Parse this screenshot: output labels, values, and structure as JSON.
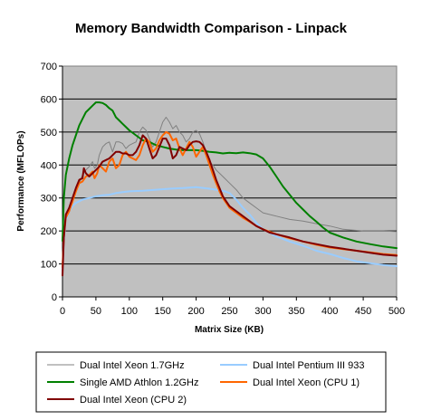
{
  "chart_data": {
    "type": "line",
    "title": "Memory Bandwidth Comparison - Linpack",
    "xlabel": "Matrix Size (KB)",
    "ylabel": "Performance (MFLOPs)",
    "xlim": [
      0,
      500
    ],
    "ylim": [
      0,
      700
    ],
    "xticks": [
      0,
      50,
      100,
      150,
      200,
      250,
      300,
      350,
      400,
      450,
      500
    ],
    "yticks": [
      0,
      100,
      200,
      300,
      400,
      500,
      600,
      700
    ],
    "grid": true,
    "plot_background": "#c0c0c0",
    "legend_position": "bottom",
    "series": [
      {
        "name": "Dual Intel Xeon 1.7GHz",
        "color": "#808080",
        "width": 1,
        "points": [
          [
            0,
            80
          ],
          [
            2,
            180
          ],
          [
            5,
            240
          ],
          [
            10,
            270
          ],
          [
            15,
            300
          ],
          [
            20,
            330
          ],
          [
            25,
            345
          ],
          [
            30,
            370
          ],
          [
            35,
            385
          ],
          [
            40,
            395
          ],
          [
            45,
            410
          ],
          [
            48,
            390
          ],
          [
            52,
            400
          ],
          [
            55,
            430
          ],
          [
            60,
            455
          ],
          [
            65,
            465
          ],
          [
            70,
            470
          ],
          [
            75,
            440
          ],
          [
            80,
            470
          ],
          [
            85,
            470
          ],
          [
            90,
            465
          ],
          [
            95,
            450
          ],
          [
            100,
            460
          ],
          [
            105,
            465
          ],
          [
            110,
            470
          ],
          [
            115,
            500
          ],
          [
            120,
            515
          ],
          [
            125,
            505
          ],
          [
            130,
            480
          ],
          [
            135,
            455
          ],
          [
            140,
            470
          ],
          [
            145,
            500
          ],
          [
            150,
            530
          ],
          [
            155,
            545
          ],
          [
            160,
            530
          ],
          [
            165,
            510
          ],
          [
            170,
            520
          ],
          [
            175,
            500
          ],
          [
            180,
            490
          ],
          [
            185,
            470
          ],
          [
            190,
            480
          ],
          [
            195,
            500
          ],
          [
            200,
            505
          ],
          [
            205,
            495
          ],
          [
            210,
            470
          ],
          [
            215,
            440
          ],
          [
            220,
            410
          ],
          [
            225,
            400
          ],
          [
            230,
            385
          ],
          [
            240,
            365
          ],
          [
            250,
            345
          ],
          [
            260,
            325
          ],
          [
            270,
            300
          ],
          [
            280,
            285
          ],
          [
            290,
            270
          ],
          [
            300,
            255
          ],
          [
            320,
            245
          ],
          [
            340,
            235
          ],
          [
            360,
            230
          ],
          [
            380,
            222
          ],
          [
            400,
            215
          ],
          [
            420,
            205
          ],
          [
            450,
            200
          ],
          [
            480,
            200
          ],
          [
            500,
            198
          ]
        ]
      },
      {
        "name": "Dual Intel Pentium III 933",
        "color": "#99ccff",
        "width": 2,
        "points": [
          [
            0,
            80
          ],
          [
            2,
            170
          ],
          [
            5,
            230
          ],
          [
            10,
            260
          ],
          [
            15,
            275
          ],
          [
            20,
            285
          ],
          [
            30,
            295
          ],
          [
            40,
            300
          ],
          [
            50,
            305
          ],
          [
            60,
            308
          ],
          [
            70,
            310
          ],
          [
            80,
            315
          ],
          [
            90,
            318
          ],
          [
            100,
            320
          ],
          [
            120,
            322
          ],
          [
            140,
            325
          ],
          [
            160,
            328
          ],
          [
            180,
            330
          ],
          [
            200,
            333
          ],
          [
            220,
            328
          ],
          [
            240,
            322
          ],
          [
            250,
            315
          ],
          [
            260,
            295
          ],
          [
            270,
            270
          ],
          [
            280,
            250
          ],
          [
            290,
            225
          ],
          [
            300,
            205
          ],
          [
            320,
            183
          ],
          [
            340,
            168
          ],
          [
            360,
            155
          ],
          [
            380,
            140
          ],
          [
            400,
            130
          ],
          [
            420,
            118
          ],
          [
            440,
            108
          ],
          [
            460,
            102
          ],
          [
            480,
            97
          ],
          [
            500,
            93
          ]
        ]
      },
      {
        "name": "Single AMD Athlon 1.2GHz",
        "color": "#008000",
        "width": 2,
        "points": [
          [
            0,
            170
          ],
          [
            2,
            300
          ],
          [
            5,
            370
          ],
          [
            10,
            420
          ],
          [
            15,
            460
          ],
          [
            20,
            490
          ],
          [
            25,
            520
          ],
          [
            30,
            540
          ],
          [
            35,
            560
          ],
          [
            40,
            570
          ],
          [
            45,
            580
          ],
          [
            50,
            590
          ],
          [
            55,
            590
          ],
          [
            60,
            588
          ],
          [
            65,
            582
          ],
          [
            70,
            572
          ],
          [
            75,
            565
          ],
          [
            80,
            545
          ],
          [
            85,
            535
          ],
          [
            90,
            525
          ],
          [
            95,
            515
          ],
          [
            100,
            505
          ],
          [
            110,
            490
          ],
          [
            120,
            475
          ],
          [
            130,
            470
          ],
          [
            140,
            460
          ],
          [
            150,
            455
          ],
          [
            160,
            450
          ],
          [
            170,
            447
          ],
          [
            180,
            445
          ],
          [
            190,
            445
          ],
          [
            200,
            445
          ],
          [
            210,
            443
          ],
          [
            220,
            440
          ],
          [
            230,
            438
          ],
          [
            240,
            435
          ],
          [
            250,
            437
          ],
          [
            260,
            436
          ],
          [
            270,
            438
          ],
          [
            280,
            436
          ],
          [
            290,
            432
          ],
          [
            300,
            420
          ],
          [
            310,
            395
          ],
          [
            320,
            365
          ],
          [
            330,
            335
          ],
          [
            340,
            310
          ],
          [
            350,
            285
          ],
          [
            360,
            265
          ],
          [
            370,
            245
          ],
          [
            380,
            228
          ],
          [
            390,
            210
          ],
          [
            400,
            195
          ],
          [
            420,
            180
          ],
          [
            440,
            168
          ],
          [
            460,
            160
          ],
          [
            480,
            153
          ],
          [
            500,
            148
          ]
        ]
      },
      {
        "name": "Dual Intel Xeon (CPU 1)",
        "color": "#ff6600",
        "width": 2,
        "points": [
          [
            0,
            90
          ],
          [
            2,
            180
          ],
          [
            5,
            240
          ],
          [
            10,
            260
          ],
          [
            15,
            290
          ],
          [
            20,
            320
          ],
          [
            25,
            345
          ],
          [
            30,
            350
          ],
          [
            35,
            365
          ],
          [
            40,
            370
          ],
          [
            45,
            380
          ],
          [
            48,
            360
          ],
          [
            52,
            375
          ],
          [
            55,
            400
          ],
          [
            60,
            390
          ],
          [
            65,
            380
          ],
          [
            70,
            410
          ],
          [
            75,
            420
          ],
          [
            80,
            390
          ],
          [
            85,
            400
          ],
          [
            90,
            430
          ],
          [
            95,
            440
          ],
          [
            100,
            425
          ],
          [
            105,
            420
          ],
          [
            110,
            415
          ],
          [
            115,
            430
          ],
          [
            120,
            460
          ],
          [
            125,
            480
          ],
          [
            130,
            470
          ],
          [
            135,
            440
          ],
          [
            140,
            450
          ],
          [
            145,
            475
          ],
          [
            150,
            490
          ],
          [
            155,
            500
          ],
          [
            160,
            495
          ],
          [
            165,
            475
          ],
          [
            170,
            480
          ],
          [
            175,
            450
          ],
          [
            180,
            430
          ],
          [
            185,
            450
          ],
          [
            190,
            470
          ],
          [
            195,
            455
          ],
          [
            200,
            425
          ],
          [
            205,
            440
          ],
          [
            210,
            455
          ],
          [
            215,
            430
          ],
          [
            220,
            400
          ],
          [
            225,
            370
          ],
          [
            230,
            345
          ],
          [
            235,
            320
          ],
          [
            240,
            300
          ],
          [
            245,
            285
          ],
          [
            250,
            270
          ],
          [
            260,
            255
          ],
          [
            270,
            240
          ],
          [
            280,
            228
          ],
          [
            290,
            215
          ],
          [
            300,
            205
          ],
          [
            320,
            190
          ],
          [
            340,
            178
          ],
          [
            360,
            168
          ],
          [
            380,
            158
          ],
          [
            400,
            150
          ],
          [
            420,
            145
          ],
          [
            440,
            140
          ],
          [
            460,
            135
          ],
          [
            480,
            130
          ],
          [
            500,
            127
          ]
        ]
      },
      {
        "name": "Dual Intel Xeon (CPU 2)",
        "color": "#800000",
        "width": 2,
        "points": [
          [
            0,
            65
          ],
          [
            2,
            180
          ],
          [
            5,
            250
          ],
          [
            10,
            270
          ],
          [
            15,
            300
          ],
          [
            20,
            330
          ],
          [
            25,
            355
          ],
          [
            30,
            360
          ],
          [
            32,
            390
          ],
          [
            35,
            375
          ],
          [
            40,
            365
          ],
          [
            45,
            375
          ],
          [
            50,
            385
          ],
          [
            55,
            395
          ],
          [
            60,
            410
          ],
          [
            65,
            415
          ],
          [
            70,
            420
          ],
          [
            75,
            430
          ],
          [
            80,
            440
          ],
          [
            85,
            440
          ],
          [
            90,
            435
          ],
          [
            95,
            435
          ],
          [
            100,
            430
          ],
          [
            105,
            430
          ],
          [
            110,
            440
          ],
          [
            115,
            460
          ],
          [
            120,
            490
          ],
          [
            125,
            480
          ],
          [
            130,
            450
          ],
          [
            135,
            420
          ],
          [
            140,
            430
          ],
          [
            145,
            455
          ],
          [
            150,
            480
          ],
          [
            155,
            480
          ],
          [
            160,
            460
          ],
          [
            165,
            420
          ],
          [
            170,
            430
          ],
          [
            175,
            455
          ],
          [
            180,
            450
          ],
          [
            185,
            445
          ],
          [
            190,
            460
          ],
          [
            195,
            470
          ],
          [
            200,
            472
          ],
          [
            205,
            470
          ],
          [
            210,
            460
          ],
          [
            215,
            440
          ],
          [
            220,
            415
          ],
          [
            225,
            385
          ],
          [
            230,
            355
          ],
          [
            235,
            330
          ],
          [
            240,
            305
          ],
          [
            245,
            290
          ],
          [
            250,
            275
          ],
          [
            260,
            260
          ],
          [
            270,
            245
          ],
          [
            280,
            230
          ],
          [
            290,
            215
          ],
          [
            300,
            205
          ],
          [
            310,
            195
          ],
          [
            320,
            190
          ],
          [
            340,
            180
          ],
          [
            360,
            168
          ],
          [
            380,
            160
          ],
          [
            400,
            152
          ],
          [
            420,
            146
          ],
          [
            440,
            140
          ],
          [
            460,
            134
          ],
          [
            480,
            128
          ],
          [
            500,
            125
          ]
        ]
      }
    ]
  }
}
